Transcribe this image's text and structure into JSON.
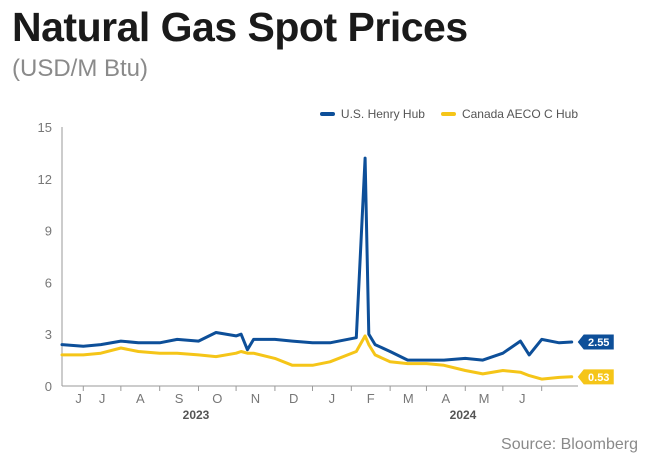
{
  "header": {
    "title": "Natural Gas Spot Prices",
    "subtitle": "(USD/M Btu)"
  },
  "footer": {
    "source": "Source: Bloomberg"
  },
  "colors": {
    "henry_hub": "#0d4f99",
    "aeco": "#f5c518"
  },
  "chart_data": {
    "type": "line",
    "title": "Natural Gas Spot Prices",
    "subtitle": "(USD/M Btu)",
    "xlabel": "",
    "ylabel": "",
    "ylim": [
      0,
      15
    ],
    "yticks": [
      0,
      3,
      6,
      9,
      12,
      15
    ],
    "x_month_labels": [
      "J",
      "J",
      "A",
      "S",
      "O",
      "N",
      "D",
      "J",
      "F",
      "M",
      "A",
      "M",
      "J"
    ],
    "x_year_labels": [
      {
        "label": "2023",
        "month_index": 3.5
      },
      {
        "label": "2024",
        "month_index": 9.5
      }
    ],
    "x": [
      "2023-05-15",
      "2023-06-01",
      "2023-06-15",
      "2023-07-01",
      "2023-07-15",
      "2023-08-01",
      "2023-08-15",
      "2023-09-01",
      "2023-09-15",
      "2023-10-01",
      "2023-10-05",
      "2023-10-10",
      "2023-10-15",
      "2023-11-01",
      "2023-11-15",
      "2023-12-01",
      "2023-12-15",
      "2024-01-05",
      "2024-01-12",
      "2024-01-15",
      "2024-01-20",
      "2024-02-01",
      "2024-02-15",
      "2024-03-01",
      "2024-03-15",
      "2024-04-01",
      "2024-04-15",
      "2024-05-01",
      "2024-05-15",
      "2024-05-22",
      "2024-06-01",
      "2024-06-15",
      "2024-06-25"
    ],
    "series": [
      {
        "name": "U.S. Henry Hub",
        "color": "#0d4f99",
        "values": [
          2.4,
          2.3,
          2.4,
          2.6,
          2.5,
          2.5,
          2.7,
          2.6,
          3.1,
          2.9,
          3.0,
          2.1,
          2.7,
          2.7,
          2.6,
          2.5,
          2.5,
          2.8,
          13.2,
          3.0,
          2.4,
          2.0,
          1.5,
          1.5,
          1.5,
          1.6,
          1.5,
          1.9,
          2.6,
          1.8,
          2.7,
          2.5,
          2.55
        ],
        "last_value_label": "2.55"
      },
      {
        "name": "Canada AECO C Hub",
        "color": "#f5c518",
        "values": [
          1.8,
          1.8,
          1.9,
          2.2,
          2.0,
          1.9,
          1.9,
          1.8,
          1.7,
          1.9,
          2.0,
          1.9,
          1.9,
          1.6,
          1.2,
          1.2,
          1.4,
          2.0,
          2.9,
          2.4,
          1.8,
          1.4,
          1.3,
          1.3,
          1.2,
          0.9,
          0.7,
          0.9,
          0.8,
          0.6,
          0.4,
          0.5,
          0.53
        ],
        "last_value_label": "0.53"
      }
    ],
    "grid": false,
    "legend_position": "top-right"
  }
}
